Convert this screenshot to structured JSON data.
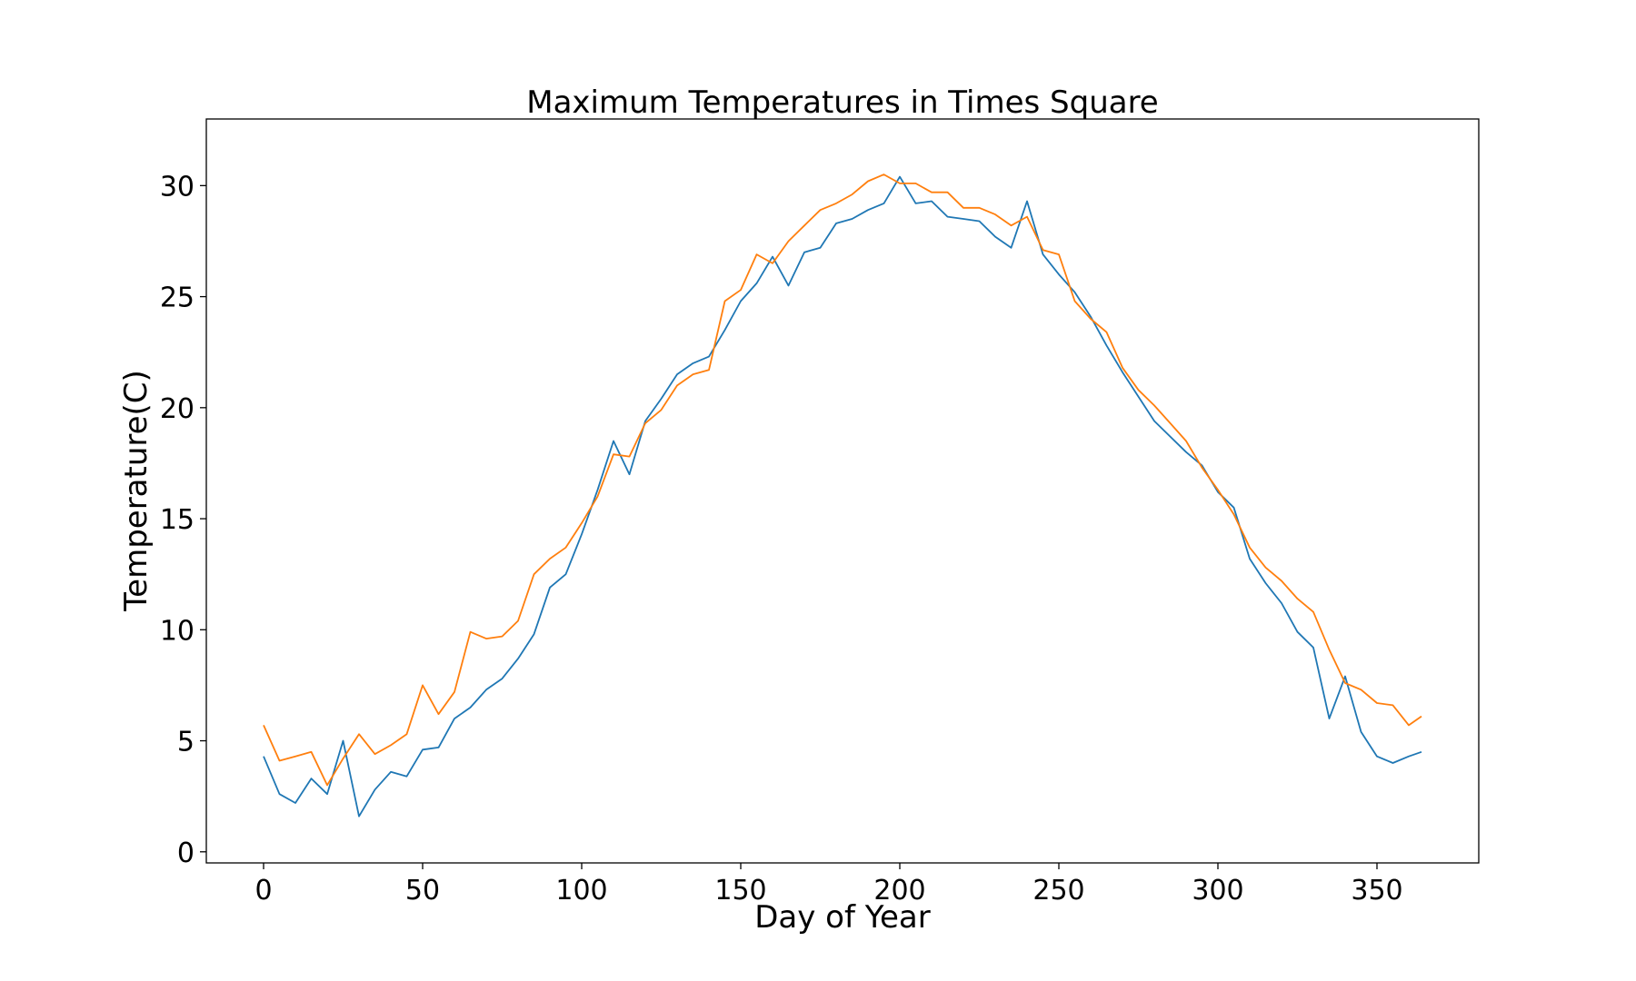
{
  "chart_data": {
    "type": "line",
    "title": "Maximum Temperatures in Times Square",
    "xlabel": "Day of Year",
    "ylabel": "Temperature(C)",
    "xlim": [
      -18,
      382
    ],
    "ylim": [
      -0.5,
      33
    ],
    "xticks": [
      0,
      50,
      100,
      150,
      200,
      250,
      300,
      350
    ],
    "yticks": [
      0,
      5,
      10,
      15,
      20,
      25,
      30
    ],
    "xtick_labels": [
      "0",
      "50",
      "100",
      "150",
      "200",
      "250",
      "300",
      "350"
    ],
    "ytick_labels": [
      "0",
      "5",
      "10",
      "15",
      "20",
      "25",
      "30"
    ],
    "grid": false,
    "legend": "none",
    "series": [
      {
        "color": "#1f77b4",
        "x": [
          0,
          5,
          10,
          15,
          20,
          25,
          30,
          35,
          40,
          45,
          50,
          55,
          60,
          65,
          70,
          75,
          80,
          85,
          90,
          95,
          100,
          105,
          110,
          115,
          120,
          125,
          130,
          135,
          140,
          145,
          150,
          155,
          160,
          165,
          170,
          175,
          180,
          185,
          190,
          195,
          200,
          205,
          210,
          215,
          220,
          225,
          230,
          235,
          240,
          245,
          250,
          255,
          260,
          265,
          270,
          275,
          280,
          285,
          290,
          295,
          300,
          305,
          310,
          315,
          320,
          325,
          330,
          335,
          340,
          345,
          350,
          355,
          360,
          364
        ],
        "values": [
          4.3,
          2.6,
          2.2,
          3.3,
          2.6,
          5.0,
          1.6,
          2.8,
          3.6,
          3.4,
          4.6,
          4.7,
          6.0,
          6.5,
          7.3,
          7.8,
          8.7,
          9.8,
          11.9,
          12.5,
          14.3,
          16.3,
          18.5,
          17.0,
          19.4,
          20.4,
          21.5,
          22.0,
          22.3,
          23.5,
          24.8,
          25.6,
          26.8,
          25.5,
          27.0,
          27.2,
          28.3,
          28.5,
          28.9,
          29.2,
          30.4,
          29.2,
          29.3,
          28.6,
          28.5,
          28.4,
          27.7,
          27.2,
          29.3,
          26.9,
          26.0,
          25.2,
          24.1,
          22.8,
          21.6,
          20.5,
          19.4,
          18.7,
          18.0,
          17.4,
          16.2,
          15.5,
          13.2,
          12.1,
          11.2,
          9.9,
          9.2,
          6.0,
          7.9,
          5.4,
          4.3,
          4.0,
          4.3,
          4.5
        ]
      },
      {
        "color": "#ff7f0e",
        "x": [
          0,
          5,
          10,
          15,
          20,
          25,
          30,
          35,
          40,
          45,
          50,
          55,
          60,
          65,
          70,
          75,
          80,
          85,
          90,
          95,
          100,
          105,
          110,
          115,
          120,
          125,
          130,
          135,
          140,
          145,
          150,
          155,
          160,
          165,
          170,
          175,
          180,
          185,
          190,
          195,
          200,
          205,
          210,
          215,
          220,
          225,
          230,
          235,
          240,
          245,
          250,
          255,
          260,
          265,
          270,
          275,
          280,
          285,
          290,
          295,
          300,
          305,
          310,
          315,
          320,
          325,
          330,
          335,
          340,
          345,
          350,
          355,
          360,
          364
        ],
        "values": [
          5.7,
          4.1,
          4.3,
          4.5,
          3.0,
          4.2,
          5.3,
          4.4,
          4.8,
          5.3,
          7.5,
          6.2,
          7.2,
          9.9,
          9.6,
          9.7,
          10.4,
          12.5,
          13.2,
          13.7,
          14.8,
          16.0,
          17.9,
          17.8,
          19.3,
          19.9,
          21.0,
          21.5,
          21.7,
          24.8,
          25.3,
          26.9,
          26.5,
          27.5,
          28.2,
          28.9,
          29.2,
          29.6,
          30.2,
          30.5,
          30.1,
          30.1,
          29.7,
          29.7,
          29.0,
          29.0,
          28.7,
          28.2,
          28.6,
          27.1,
          26.9,
          24.8,
          24.0,
          23.4,
          21.8,
          20.8,
          20.1,
          19.3,
          18.5,
          17.3,
          16.3,
          15.2,
          13.7,
          12.8,
          12.2,
          11.4,
          10.8,
          9.1,
          7.6,
          7.3,
          6.7,
          6.6,
          5.7,
          6.1
        ]
      }
    ]
  }
}
